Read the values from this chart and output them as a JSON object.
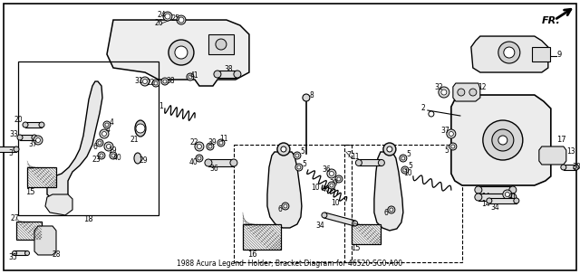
{
  "title": "1988 Acura Legend\nHolder, Bracket Diagram for 46520-SG0-A00",
  "background_color": "#ffffff",
  "fig_width": 6.4,
  "fig_height": 3.03,
  "dpi": 100,
  "image_data": "target_encoded"
}
